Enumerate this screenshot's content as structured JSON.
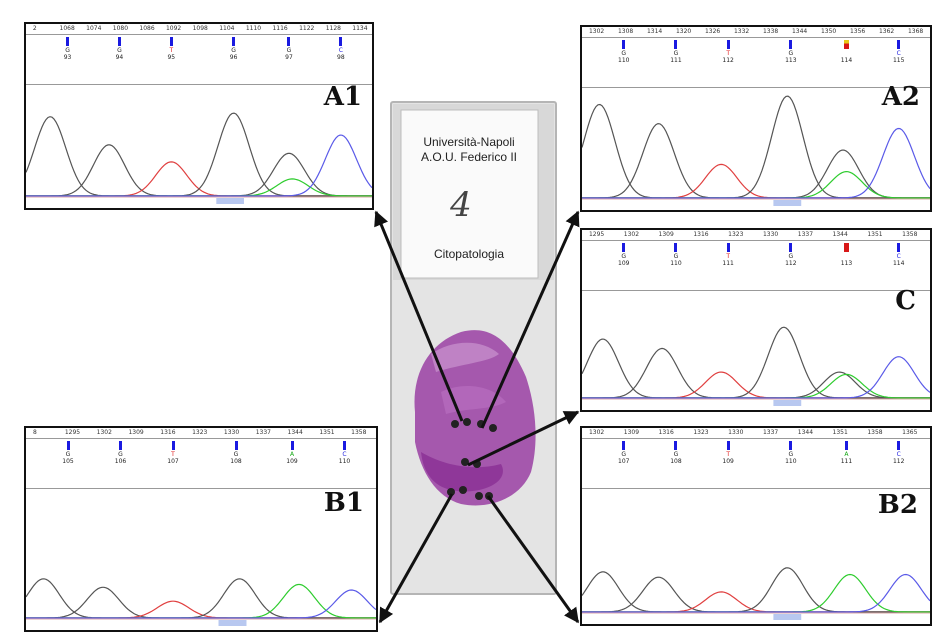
{
  "panels": {
    "a1": {
      "label": "A1",
      "ruler": [
        "2",
        "1068",
        "1074",
        "1080",
        "1086",
        "1092",
        "1098",
        "1104",
        "1110",
        "1116",
        "1122",
        "1128",
        "1134"
      ],
      "bases": [
        {
          "base": "G",
          "pos": "93",
          "bar": "blue"
        },
        {
          "base": "G",
          "pos": "94",
          "bar": "blue"
        },
        {
          "base": "T",
          "pos": "95",
          "bar": "blue"
        },
        {
          "base": "G",
          "pos": "96",
          "bar": "blue"
        },
        {
          "base": "G",
          "pos": "97",
          "bar": "blue"
        },
        {
          "base": "C",
          "pos": "98",
          "bar": "blue"
        }
      ]
    },
    "a2": {
      "label": "A2",
      "ruler": [
        "1302",
        "1308",
        "1314",
        "1320",
        "1326",
        "1332",
        "1338",
        "1344",
        "1350",
        "1356",
        "1362",
        "1368"
      ],
      "bases": [
        {
          "base": "G",
          "pos": "110",
          "bar": "blue"
        },
        {
          "base": "G",
          "pos": "111",
          "bar": "blue"
        },
        {
          "base": "T",
          "pos": "112",
          "bar": "blue"
        },
        {
          "base": "G",
          "pos": "113",
          "bar": "blue"
        },
        {
          "base": "",
          "pos": "114",
          "bar": "redyellow"
        },
        {
          "base": "C",
          "pos": "115",
          "bar": "blue"
        }
      ]
    },
    "c": {
      "label": "C",
      "ruler": [
        "1295",
        "1302",
        "1309",
        "1316",
        "1323",
        "1330",
        "1337",
        "1344",
        "1351",
        "1358"
      ],
      "bases": [
        {
          "base": "G",
          "pos": "109",
          "bar": "blue"
        },
        {
          "base": "G",
          "pos": "110",
          "bar": "blue"
        },
        {
          "base": "T",
          "pos": "111",
          "bar": "blue"
        },
        {
          "base": "G",
          "pos": "112",
          "bar": "blue"
        },
        {
          "base": "",
          "pos": "113",
          "bar": "red"
        },
        {
          "base": "C",
          "pos": "114",
          "bar": "blue"
        }
      ]
    },
    "b1": {
      "label": "B1",
      "ruler": [
        "8",
        "1295",
        "1302",
        "1309",
        "1316",
        "1323",
        "1330",
        "1337",
        "1344",
        "1351",
        "1358"
      ],
      "bases": [
        {
          "base": "G",
          "pos": "105",
          "bar": "blue"
        },
        {
          "base": "G",
          "pos": "106",
          "bar": "blue"
        },
        {
          "base": "T",
          "pos": "107",
          "bar": "blue"
        },
        {
          "base": "G",
          "pos": "108",
          "bar": "blue"
        },
        {
          "base": "A",
          "pos": "109",
          "bar": "blue"
        },
        {
          "base": "C",
          "pos": "110",
          "bar": "blue"
        }
      ]
    },
    "b2": {
      "label": "B2",
      "ruler": [
        "1302",
        "1309",
        "1316",
        "1323",
        "1330",
        "1337",
        "1344",
        "1351",
        "1358",
        "1365"
      ],
      "bases": [
        {
          "base": "G",
          "pos": "107",
          "bar": "blue"
        },
        {
          "base": "G",
          "pos": "108",
          "bar": "blue"
        },
        {
          "base": "T",
          "pos": "109",
          "bar": "blue"
        },
        {
          "base": "G",
          "pos": "110",
          "bar": "blue"
        },
        {
          "base": "A",
          "pos": "111",
          "bar": "blue"
        },
        {
          "base": "C",
          "pos": "112",
          "bar": "blue"
        }
      ]
    }
  },
  "slide": {
    "institution_line1": "Università-Napoli",
    "institution_line2": "A.O.U. Federico II",
    "handwritten_number": "4",
    "department": "Citopatologia"
  },
  "colors": {
    "trace_G": "#555555",
    "trace_A": "#2ecc2e",
    "trace_T": "#e04040",
    "trace_C": "#5a5ae8",
    "stain": "#9a3fa3"
  }
}
